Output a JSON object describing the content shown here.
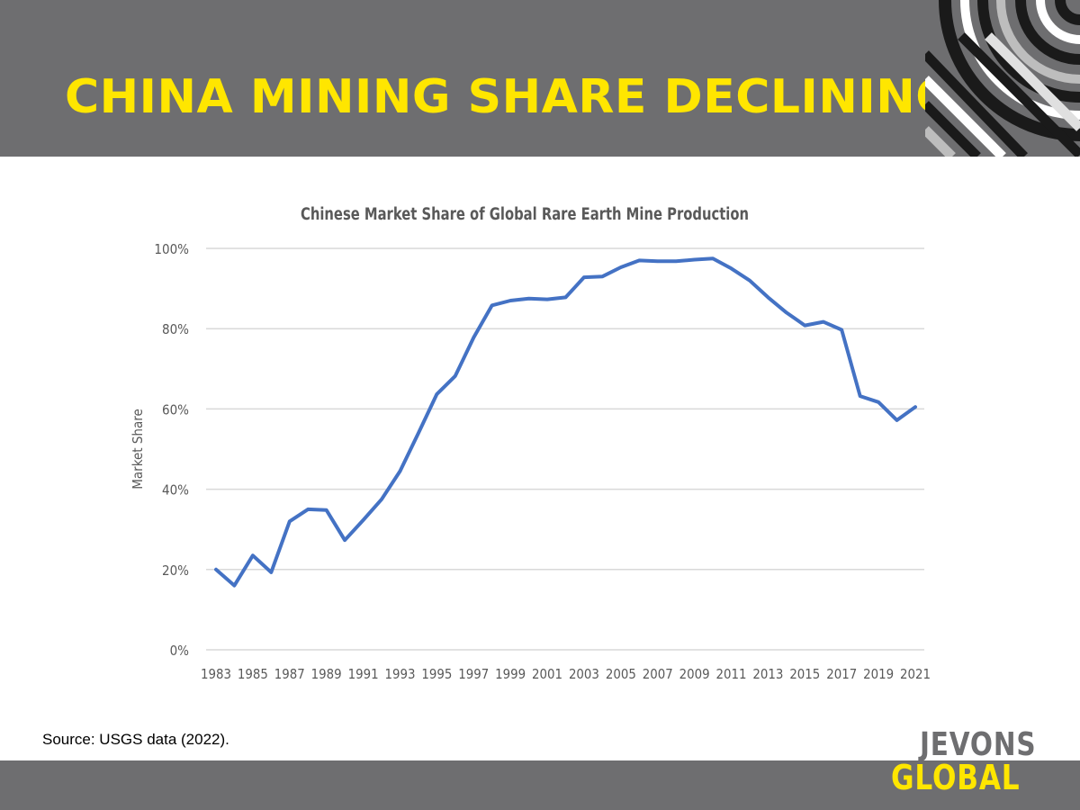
{
  "slide": {
    "title": "CHINA MINING SHARE DECLINING",
    "source": "Source: USGS data (2022).",
    "logo": {
      "line1": "JEVONS",
      "line2": "GLOBAL"
    }
  },
  "colors": {
    "band": "#6e6e70",
    "title": "#ffe600",
    "line": "#4472c4",
    "grid": "#d9d9d9",
    "axis_text": "#595959"
  },
  "chart_data": {
    "type": "line",
    "title": "Chinese Market Share of Global Rare Earth Mine Production",
    "xlabel": "",
    "ylabel": "Market Share",
    "ylim": [
      0,
      100
    ],
    "yticks": [
      0,
      20,
      40,
      60,
      80,
      100
    ],
    "ytick_labels": [
      "0%",
      "20%",
      "40%",
      "60%",
      "80%",
      "100%"
    ],
    "x": [
      1983,
      1984,
      1985,
      1986,
      1987,
      1988,
      1989,
      1990,
      1991,
      1992,
      1993,
      1994,
      1995,
      1996,
      1997,
      1998,
      1999,
      2000,
      2001,
      2002,
      2003,
      2004,
      2005,
      2006,
      2007,
      2008,
      2009,
      2010,
      2011,
      2012,
      2013,
      2014,
      2015,
      2016,
      2017,
      2018,
      2019,
      2020,
      2021
    ],
    "xtick_labels": [
      "1983",
      "1985",
      "1987",
      "1989",
      "1991",
      "1993",
      "1995",
      "1997",
      "1999",
      "2001",
      "2003",
      "2005",
      "2007",
      "2009",
      "2011",
      "2013",
      "2015",
      "2017",
      "2019",
      "2021"
    ],
    "series": [
      {
        "name": "Chinese market share",
        "values": [
          20,
          16,
          23.5,
          19.3,
          32,
          35,
          34.8,
          27.3,
          32.3,
          37.5,
          44.5,
          54,
          63.7,
          68.2,
          77.8,
          85.8,
          87,
          87.5,
          87.3,
          87.8,
          92.8,
          93,
          95.3,
          97,
          96.8,
          96.8,
          97.2,
          97.5,
          95,
          92,
          87.8,
          84,
          80.8,
          81.7,
          79.7,
          63.2,
          61.7,
          57.2,
          60.5
        ]
      }
    ],
    "grid": true,
    "legend": "none"
  }
}
